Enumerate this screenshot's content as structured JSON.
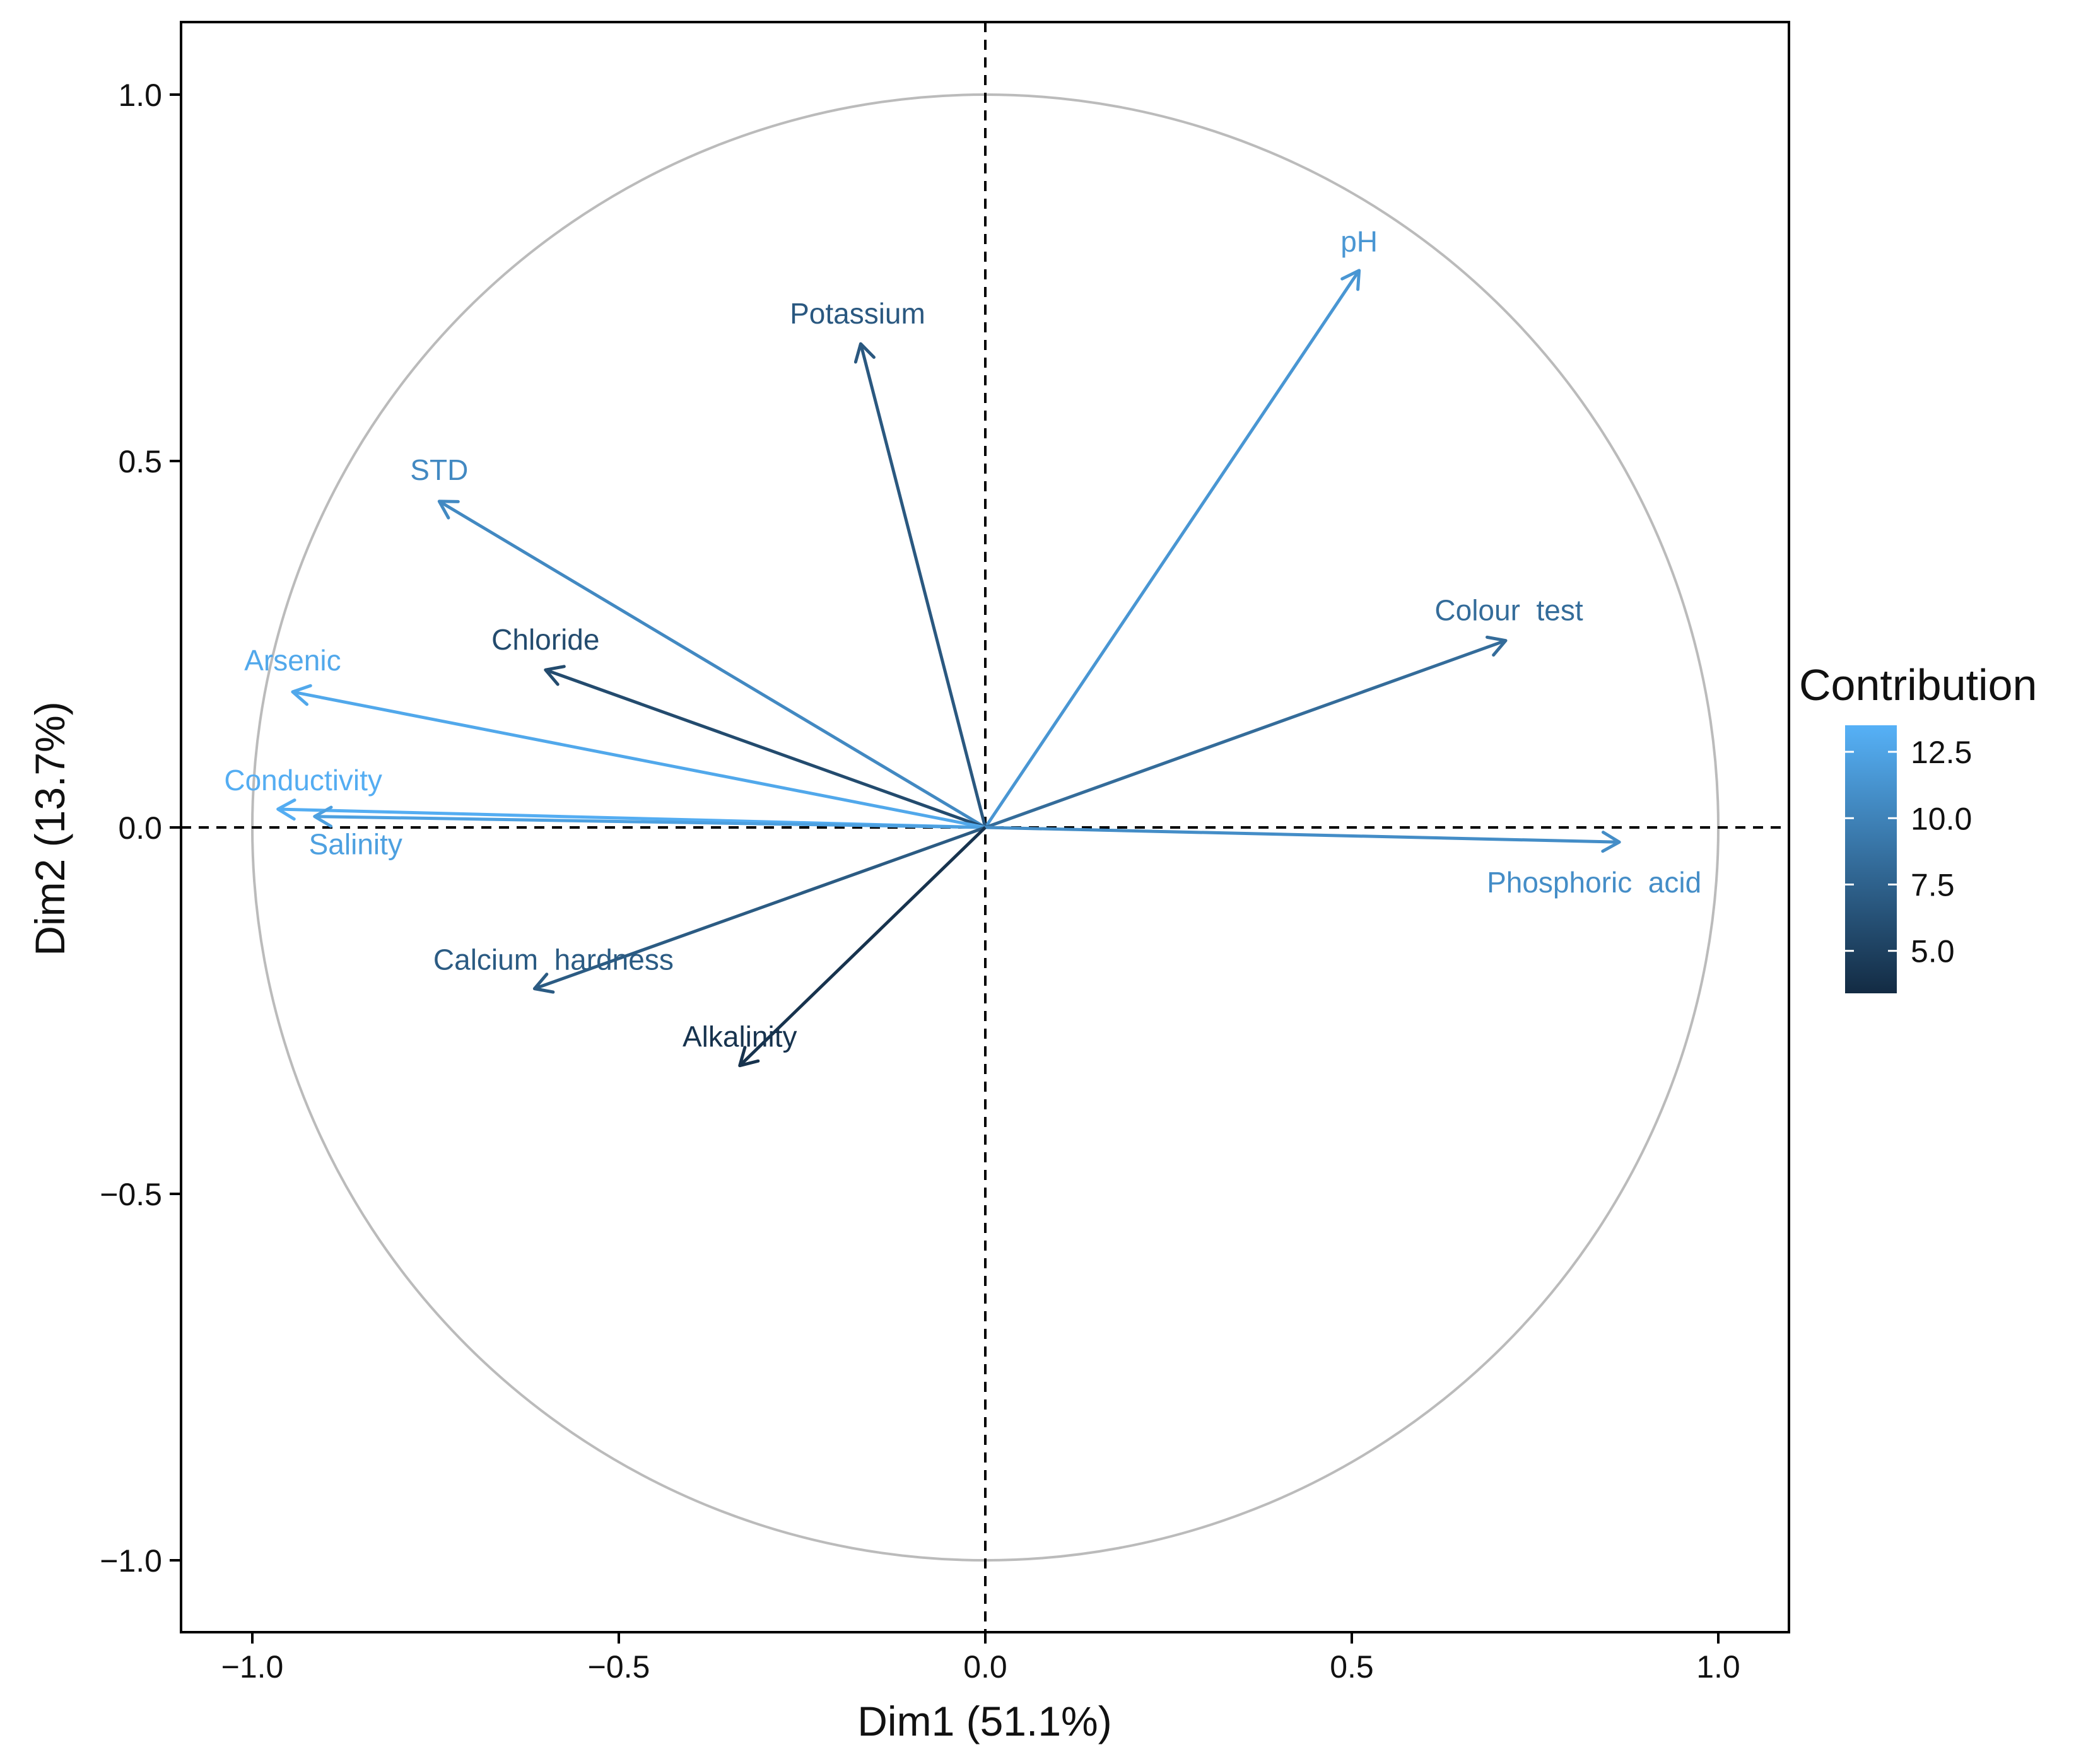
{
  "chart_data": {
    "type": "pca-variables",
    "xlabel": "Dim1 (51.1%)",
    "ylabel": "Dim2 (13.7%)",
    "xlim": [
      -1.1,
      1.1
    ],
    "ylim": [
      -1.1,
      1.1
    ],
    "x_ticks": [
      {
        "value": -1.0,
        "label": "−1.0"
      },
      {
        "value": -0.5,
        "label": "−0.5"
      },
      {
        "value": 0.0,
        "label": "0.0"
      },
      {
        "value": 0.5,
        "label": "0.5"
      },
      {
        "value": 1.0,
        "label": "1.0"
      }
    ],
    "y_ticks": [
      {
        "value": -1.0,
        "label": "−1.0"
      },
      {
        "value": -0.5,
        "label": "−0.5"
      },
      {
        "value": 0.0,
        "label": "0.0"
      },
      {
        "value": 0.5,
        "label": "0.5"
      },
      {
        "value": 1.0,
        "label": "1.0"
      }
    ],
    "correlation_circle_radius": 1.0,
    "reference_lines": {
      "x": 0,
      "y": 0,
      "style": "dashed"
    },
    "variables": [
      {
        "name": "pH",
        "x": 0.51,
        "y": 0.76,
        "contribution": 11.5
      },
      {
        "name": "Potassium",
        "x": -0.17,
        "y": 0.66,
        "contribution": 6.8
      },
      {
        "name": "STD",
        "x": -0.745,
        "y": 0.445,
        "contribution": 10.5
      },
      {
        "name": "Colour  test",
        "x": 0.71,
        "y": 0.255,
        "contribution": 8.3
      },
      {
        "name": "Chloride",
        "x": -0.6,
        "y": 0.215,
        "contribution": 5.8
      },
      {
        "name": "Arsenic",
        "x": -0.945,
        "y": 0.185,
        "contribution": 12.8
      },
      {
        "name": "Conductivity",
        "x": -0.965,
        "y": 0.025,
        "contribution": 13.2
      },
      {
        "name": "Salinity",
        "x": -0.915,
        "y": 0.015,
        "contribution": 12.2
      },
      {
        "name": "Phosphoric  acid",
        "x": 0.865,
        "y": -0.02,
        "contribution": 10.8
      },
      {
        "name": "Calcium  hardness",
        "x": -0.615,
        "y": -0.22,
        "contribution": 7.0
      },
      {
        "name": "Alkalinity",
        "x": -0.335,
        "y": -0.325,
        "contribution": 4.0
      }
    ],
    "legend": {
      "title": "Contribution",
      "placement": "right",
      "min": 3.4,
      "max": 13.5,
      "ticks": [
        {
          "value": 12.5,
          "label": "12.5"
        },
        {
          "value": 10.0,
          "label": "10.0"
        },
        {
          "value": 7.5,
          "label": "7.5"
        },
        {
          "value": 5.0,
          "label": "5.0"
        }
      ],
      "color_low": "#132b43",
      "color_high": "#56b1f7"
    },
    "colors": {
      "circle": "#bbbbbb",
      "frame": "#000000",
      "reference_line": "#000000"
    }
  }
}
